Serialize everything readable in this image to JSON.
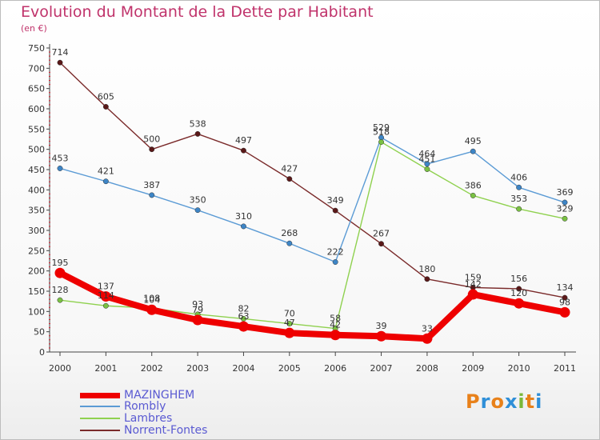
{
  "header": {
    "title": "Evolution du Montant de la Dette par Habitant",
    "subtitle": "(en €)"
  },
  "logo": {
    "text": "Proxiti"
  },
  "chart_data": {
    "type": "line",
    "title": "Evolution du Montant de la Dette par Habitant",
    "subtitle": "(en €)",
    "xlabel": "",
    "ylabel": "",
    "categories": [
      "2000",
      "2001",
      "2002",
      "2003",
      "2004",
      "2005",
      "2006",
      "2007",
      "2008",
      "2009",
      "2010",
      "2011"
    ],
    "ylim": [
      0,
      750
    ],
    "yticks": [
      0,
      50,
      100,
      150,
      200,
      250,
      300,
      350,
      400,
      450,
      500,
      550,
      600,
      650,
      700,
      750
    ],
    "grid": false,
    "legend_position": "bottom-left",
    "series": [
      {
        "name": "MAZINGHEM",
        "color": "#ee0000",
        "values": [
          195,
          137,
          104,
          79,
          63,
          47,
          42,
          39,
          33,
          142,
          120,
          98
        ],
        "labels": [
          "195",
          "137",
          "104",
          "79",
          "63",
          "47",
          "42",
          "39",
          "33",
          "142",
          "120",
          "98"
        ]
      },
      {
        "name": "Rombly",
        "color": "#5b9bd5",
        "values": [
          453,
          421,
          387,
          350,
          310,
          268,
          222,
          529,
          464,
          495,
          406,
          369
        ],
        "labels": [
          "453",
          "421",
          "387",
          "350",
          "310",
          "268",
          "222",
          "529",
          "464",
          "495",
          "406",
          "369"
        ]
      },
      {
        "name": "Lambres",
        "color": "#8fd14f",
        "values": [
          128,
          114,
          108,
          93,
          82,
          70,
          58,
          518,
          451,
          386,
          353,
          329
        ],
        "labels": [
          "128",
          "114",
          "108",
          "93",
          "82",
          "70",
          "58",
          "518",
          "451",
          "386",
          "353",
          "329"
        ]
      },
      {
        "name": "Norrent-Fontes",
        "color": "#7a2a2a",
        "values": [
          714,
          605,
          500,
          538,
          497,
          427,
          349,
          267,
          180,
          159,
          156,
          134
        ],
        "labels": [
          "714",
          "605",
          "500",
          "538",
          "497",
          "427",
          "349",
          "267",
          "180",
          "159",
          "156",
          "134"
        ]
      }
    ]
  }
}
